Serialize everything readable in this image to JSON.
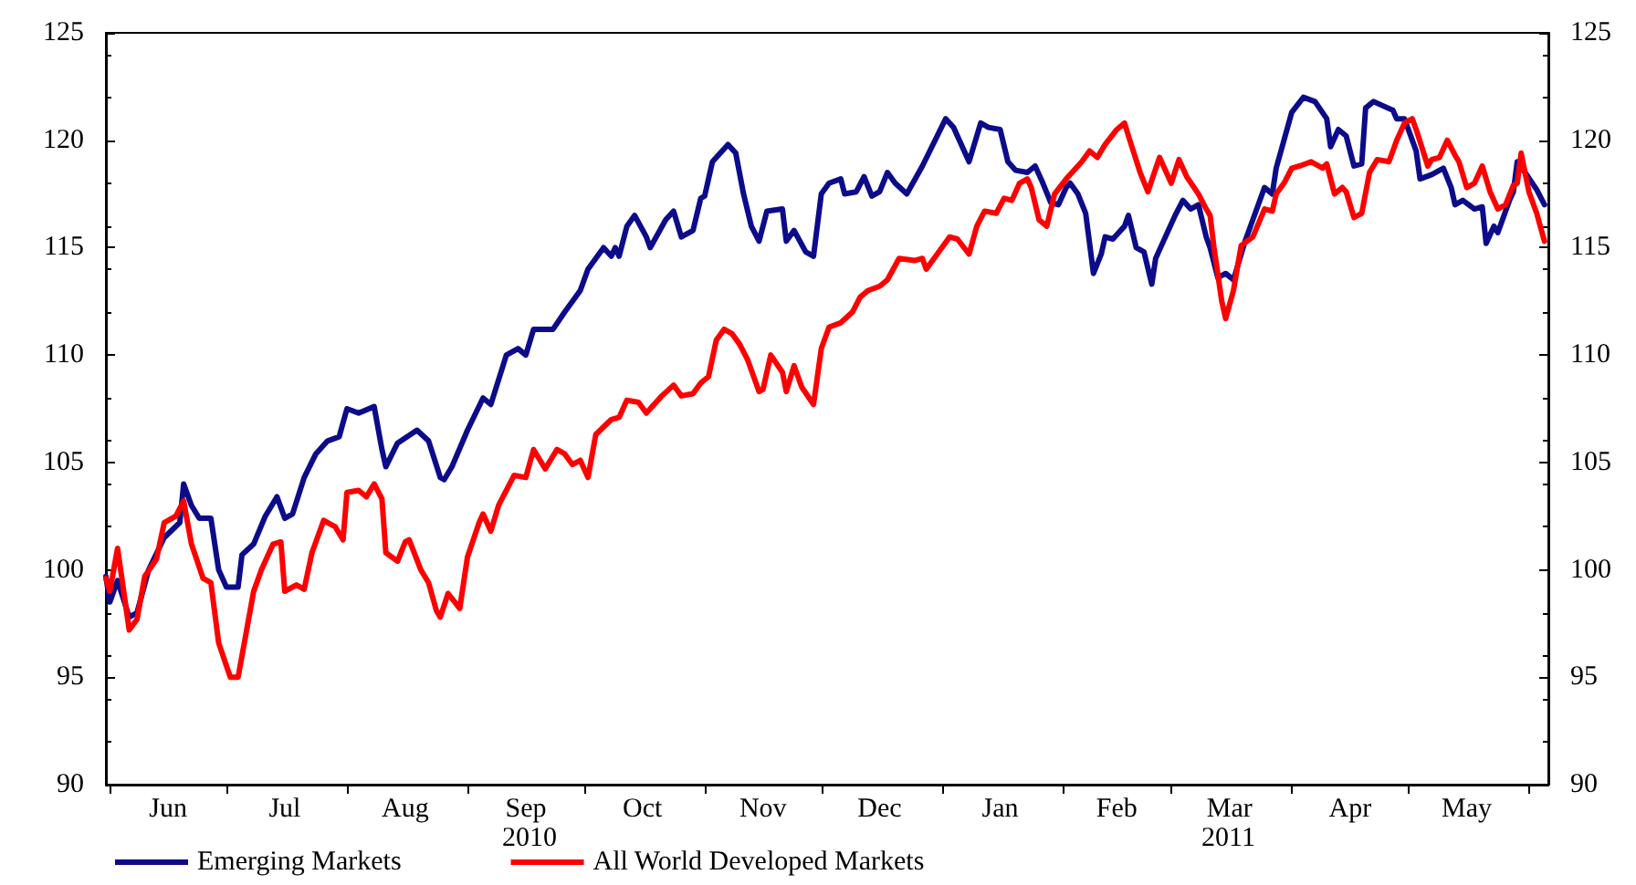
{
  "chart_data": {
    "type": "line",
    "xlim": [
      "2010-05-31",
      "2011-06-06"
    ],
    "xticks": [
      {
        "value": "2010-06-01",
        "label": null
      },
      {
        "value": "2010-06-16",
        "label": "Jun"
      },
      {
        "value": "2010-07-01",
        "label": null
      },
      {
        "value": "2010-07-16",
        "label": "Jul"
      },
      {
        "value": "2010-08-01",
        "label": null
      },
      {
        "value": "2010-08-16",
        "label": "Aug"
      },
      {
        "value": "2010-09-01",
        "label": null
      },
      {
        "value": "2010-09-16",
        "label": "Sep"
      },
      {
        "value": "2010-10-01",
        "label": null
      },
      {
        "value": "2010-10-16",
        "label": "Oct"
      },
      {
        "value": "2010-11-01",
        "label": null
      },
      {
        "value": "2010-11-16",
        "label": "Nov"
      },
      {
        "value": "2010-12-01",
        "label": null
      },
      {
        "value": "2010-12-16",
        "label": "Dec"
      },
      {
        "value": "2011-01-01",
        "label": null
      },
      {
        "value": "2011-01-16",
        "label": "Jan"
      },
      {
        "value": "2011-02-01",
        "label": null
      },
      {
        "value": "2011-02-15",
        "label": "Feb"
      },
      {
        "value": "2011-03-01",
        "label": null
      },
      {
        "value": "2011-03-16",
        "label": "Mar"
      },
      {
        "value": "2011-04-01",
        "label": null
      },
      {
        "value": "2011-04-16",
        "label": "Apr"
      },
      {
        "value": "2011-05-01",
        "label": null
      },
      {
        "value": "2011-05-16",
        "label": "May"
      },
      {
        "value": "2011-06-01",
        "label": null
      }
    ],
    "ylim": [
      90,
      125
    ],
    "yticks": [
      90,
      95,
      100,
      105,
      110,
      115,
      120,
      125
    ],
    "y2lim": [
      90,
      125
    ],
    "y2ticks": [
      90,
      95,
      100,
      105,
      110,
      115,
      120,
      125
    ],
    "grid": false,
    "legend": "bottom",
    "marker": "none",
    "line_style": "solid",
    "annotations": [
      "2010",
      "2011"
    ],
    "series": [
      {
        "name": "Emerging Markets",
        "color": "#0c0c8a",
        "x": [
          "2010-05-31",
          "2010-06-01",
          "2010-06-03",
          "2010-06-06",
          "2010-06-08",
          "2010-06-11",
          "2010-06-15",
          "2010-06-19",
          "2010-06-20",
          "2010-06-22",
          "2010-06-24",
          "2010-06-27",
          "2010-06-29",
          "2010-07-01",
          "2010-07-04",
          "2010-07-05",
          "2010-07-08",
          "2010-07-11",
          "2010-07-14",
          "2010-07-16",
          "2010-07-18",
          "2010-07-21",
          "2010-07-24",
          "2010-07-27",
          "2010-07-30",
          "2010-08-01",
          "2010-08-04",
          "2010-08-08",
          "2010-08-10",
          "2010-08-11",
          "2010-08-14",
          "2010-08-19",
          "2010-08-22",
          "2010-08-25",
          "2010-08-26",
          "2010-08-28",
          "2010-09-01",
          "2010-09-05",
          "2010-09-07",
          "2010-09-11",
          "2010-09-14",
          "2010-09-16",
          "2010-09-18",
          "2010-09-23",
          "2010-09-26",
          "2010-09-30",
          "2010-10-02",
          "2010-10-06",
          "2010-10-08",
          "2010-10-09",
          "2010-10-10",
          "2010-10-12",
          "2010-10-14",
          "2010-10-17",
          "2010-10-18",
          "2010-10-22",
          "2010-10-24",
          "2010-10-26",
          "2010-10-29",
          "2010-10-31",
          "2010-11-01",
          "2010-11-03",
          "2010-11-07",
          "2010-11-09",
          "2010-11-11",
          "2010-11-13",
          "2010-11-15",
          "2010-11-17",
          "2010-11-21",
          "2010-11-22",
          "2010-11-24",
          "2010-11-27",
          "2010-11-29",
          "2010-12-01",
          "2010-12-03",
          "2010-12-06",
          "2010-12-07",
          "2010-12-10",
          "2010-12-12",
          "2010-12-14",
          "2010-12-16",
          "2010-12-18",
          "2010-12-20",
          "2010-12-23",
          "2010-12-27",
          "2011-01-02",
          "2011-01-04",
          "2011-01-08",
          "2011-01-11",
          "2011-01-13",
          "2011-01-16",
          "2011-01-18",
          "2011-01-20",
          "2011-01-23",
          "2011-01-25",
          "2011-01-27",
          "2011-01-29",
          "2011-01-31",
          "2011-02-02",
          "2011-02-03",
          "2011-02-05",
          "2011-02-07",
          "2011-02-09",
          "2011-02-11",
          "2011-02-12",
          "2011-02-14",
          "2011-02-17",
          "2011-02-18",
          "2011-02-20",
          "2011-02-22",
          "2011-02-24",
          "2011-02-25",
          "2011-02-27",
          "2011-03-02",
          "2011-03-04",
          "2011-03-06",
          "2011-03-08",
          "2011-03-10",
          "2011-03-11",
          "2011-03-13",
          "2011-03-15",
          "2011-03-17",
          "2011-03-20",
          "2011-03-22",
          "2011-03-25",
          "2011-03-27",
          "2011-03-28",
          "2011-03-30",
          "2011-04-01",
          "2011-04-04",
          "2011-04-07",
          "2011-04-10",
          "2011-04-11",
          "2011-04-13",
          "2011-04-15",
          "2011-04-17",
          "2011-04-19",
          "2011-04-20",
          "2011-04-22",
          "2011-04-27",
          "2011-04-28",
          "2011-04-30",
          "2011-05-03",
          "2011-05-04",
          "2011-05-07",
          "2011-05-10",
          "2011-05-12",
          "2011-05-13",
          "2011-05-15",
          "2011-05-18",
          "2011-05-20",
          "2011-05-21",
          "2011-05-23",
          "2011-05-24",
          "2011-05-27",
          "2011-05-28",
          "2011-05-29",
          "2011-05-31",
          "2011-06-03",
          "2011-06-05"
        ],
        "values": [
          99.7,
          98.5,
          99.5,
          97.8,
          98,
          100,
          101.5,
          102.2,
          104,
          103,
          102.4,
          102.4,
          100,
          99.2,
          99.2,
          100.7,
          101.2,
          102.5,
          103.4,
          102.4,
          102.6,
          104.3,
          105.4,
          106,
          106.2,
          107.5,
          107.3,
          107.6,
          105.6,
          104.8,
          105.9,
          106.5,
          106,
          104.3,
          104.2,
          104.8,
          106.5,
          108,
          107.7,
          110,
          110.3,
          110,
          111.2,
          111.2,
          112,
          113,
          114,
          115,
          114.6,
          115,
          114.6,
          116,
          116.5,
          115.5,
          115,
          116.3,
          116.7,
          115.5,
          115.8,
          117.3,
          117.4,
          119,
          119.8,
          119.4,
          117.5,
          116,
          115.3,
          116.7,
          116.8,
          115.3,
          115.8,
          114.8,
          114.6,
          117.5,
          118,
          118.2,
          117.5,
          117.6,
          118.3,
          117.4,
          117.6,
          118.5,
          118,
          117.5,
          118.8,
          121,
          120.6,
          119,
          120.8,
          120.6,
          120.5,
          119,
          118.6,
          118.5,
          118.8,
          118,
          117.1,
          117,
          117.8,
          118,
          117.5,
          116.6,
          113.8,
          114.7,
          115.5,
          115.4,
          116,
          116.5,
          115,
          114.8,
          113.3,
          114.5,
          115.3,
          116.5,
          117.2,
          116.8,
          117,
          115.5,
          115,
          113.6,
          113.8,
          113.5,
          115.3,
          116.3,
          117.8,
          117.5,
          118.7,
          120,
          121.3,
          122,
          121.8,
          121,
          119.7,
          120.5,
          120.2,
          118.8,
          118.9,
          121.5,
          121.8,
          121.4,
          121,
          121,
          119.5,
          118.2,
          118.4,
          118.7,
          117.8,
          117,
          117.2,
          116.8,
          116.9,
          115.2,
          116,
          115.7,
          117.2,
          117.6,
          119,
          118.5,
          117.7,
          117
        ]
      },
      {
        "name": "All World Developed Markets",
        "color": "#ff0000",
        "x": [
          "2010-05-31",
          "2010-06-01",
          "2010-06-03",
          "2010-06-06",
          "2010-06-08",
          "2010-06-10",
          "2010-06-13",
          "2010-06-15",
          "2010-06-18",
          "2010-06-20",
          "2010-06-22",
          "2010-06-25",
          "2010-06-27",
          "2010-06-29",
          "2010-07-02",
          "2010-07-04",
          "2010-07-06",
          "2010-07-08",
          "2010-07-10",
          "2010-07-13",
          "2010-07-15",
          "2010-07-16",
          "2010-07-19",
          "2010-07-21",
          "2010-07-23",
          "2010-07-26",
          "2010-07-29",
          "2010-07-31",
          "2010-08-01",
          "2010-08-04",
          "2010-08-06",
          "2010-08-08",
          "2010-08-10",
          "2010-08-11",
          "2010-08-14",
          "2010-08-16",
          "2010-08-17",
          "2010-08-20",
          "2010-08-22",
          "2010-08-24",
          "2010-08-25",
          "2010-08-27",
          "2010-08-30",
          "2010-09-01",
          "2010-09-04",
          "2010-09-05",
          "2010-09-07",
          "2010-09-09",
          "2010-09-13",
          "2010-09-16",
          "2010-09-18",
          "2010-09-21",
          "2010-09-24",
          "2010-09-26",
          "2010-09-28",
          "2010-09-30",
          "2010-10-02",
          "2010-10-04",
          "2010-10-08",
          "2010-10-10",
          "2010-10-12",
          "2010-10-15",
          "2010-10-17",
          "2010-10-21",
          "2010-10-24",
          "2010-10-26",
          "2010-10-29",
          "2010-10-31",
          "2010-11-02",
          "2010-11-04",
          "2010-11-06",
          "2010-11-08",
          "2010-11-10",
          "2010-11-12",
          "2010-11-15",
          "2010-11-16",
          "2010-11-18",
          "2010-11-21",
          "2010-11-22",
          "2010-11-24",
          "2010-11-26",
          "2010-11-29",
          "2010-12-01",
          "2010-12-03",
          "2010-12-06",
          "2010-12-09",
          "2010-12-11",
          "2010-12-13",
          "2010-12-16",
          "2010-12-18",
          "2010-12-21",
          "2010-12-25",
          "2010-12-27",
          "2010-12-28",
          "2011-01-01",
          "2011-01-03",
          "2011-01-05",
          "2011-01-08",
          "2011-01-10",
          "2011-01-12",
          "2011-01-15",
          "2011-01-17",
          "2011-01-19",
          "2011-01-21",
          "2011-01-23",
          "2011-01-24",
          "2011-01-26",
          "2011-01-28",
          "2011-01-30",
          "2011-02-02",
          "2011-02-06",
          "2011-02-08",
          "2011-02-10",
          "2011-02-12",
          "2011-02-15",
          "2011-02-17",
          "2011-02-18",
          "2011-02-21",
          "2011-02-23",
          "2011-02-26",
          "2011-03-01",
          "2011-03-03",
          "2011-03-05",
          "2011-03-08",
          "2011-03-10",
          "2011-03-11",
          "2011-03-12",
          "2011-03-14",
          "2011-03-15",
          "2011-03-17",
          "2011-03-19",
          "2011-03-22",
          "2011-03-25",
          "2011-03-27",
          "2011-03-28",
          "2011-03-30",
          "2011-04-01",
          "2011-04-03",
          "2011-04-06",
          "2011-04-09",
          "2011-04-10",
          "2011-04-12",
          "2011-04-14",
          "2011-04-15",
          "2011-04-17",
          "2011-04-19",
          "2011-04-21",
          "2011-04-23",
          "2011-04-26",
          "2011-04-28",
          "2011-04-30",
          "2011-05-02",
          "2011-05-03",
          "2011-05-06",
          "2011-05-07",
          "2011-05-09",
          "2011-05-11",
          "2011-05-13",
          "2011-05-14",
          "2011-05-16",
          "2011-05-18",
          "2011-05-20",
          "2011-05-22",
          "2011-05-24",
          "2011-05-26",
          "2011-05-28",
          "2011-05-29",
          "2011-05-30",
          "2011-06-01",
          "2011-06-03",
          "2011-06-05"
        ],
        "values": [
          99.6,
          99,
          101,
          97.2,
          97.7,
          99.7,
          100.5,
          102.2,
          102.5,
          103.2,
          101.2,
          99.6,
          99.4,
          96.6,
          95,
          95,
          97,
          99,
          100,
          101.2,
          101.3,
          99,
          99.3,
          99.1,
          100.8,
          102.3,
          102,
          101.4,
          103.6,
          103.7,
          103.4,
          104,
          103.3,
          100.8,
          100.4,
          101.3,
          101.4,
          100,
          99.4,
          98.1,
          97.8,
          98.9,
          98.2,
          100.6,
          102.2,
          102.6,
          101.8,
          103,
          104.4,
          104.3,
          105.6,
          104.7,
          105.6,
          105.4,
          104.9,
          105.1,
          104.3,
          106.3,
          107,
          107.1,
          107.9,
          107.8,
          107.3,
          108.1,
          108.6,
          108.1,
          108.2,
          108.7,
          109,
          110.7,
          111.2,
          111,
          110.5,
          109.8,
          108.3,
          108.4,
          110,
          109.2,
          108.3,
          109.5,
          108.5,
          107.7,
          110.3,
          111.3,
          111.5,
          112,
          112.7,
          113,
          113.2,
          113.5,
          114.5,
          114.4,
          114.5,
          114,
          115,
          115.5,
          115.4,
          114.7,
          116,
          116.7,
          116.6,
          117.3,
          117.2,
          118,
          118.2,
          117.8,
          116.3,
          116,
          117.5,
          118.2,
          119,
          119.5,
          119.2,
          119.8,
          120.5,
          120.8,
          120.2,
          118.5,
          117.6,
          119.2,
          118,
          119.1,
          118.3,
          117.5,
          116.8,
          116.5,
          115,
          112.5,
          111.7,
          113,
          115.1,
          115.5,
          116.8,
          116.7,
          117.5,
          118,
          118.7,
          118.8,
          119,
          118.7,
          118.9,
          117.5,
          117.8,
          117.6,
          116.4,
          116.6,
          118.5,
          119.1,
          119,
          120,
          120.8,
          121,
          120.5,
          118.8,
          119.1,
          119.2,
          120,
          119.3,
          119,
          117.8,
          118,
          118.8,
          117.6,
          116.8,
          117,
          117.9,
          118,
          119.4,
          117.6,
          116.6,
          115.3
        ]
      }
    ]
  }
}
